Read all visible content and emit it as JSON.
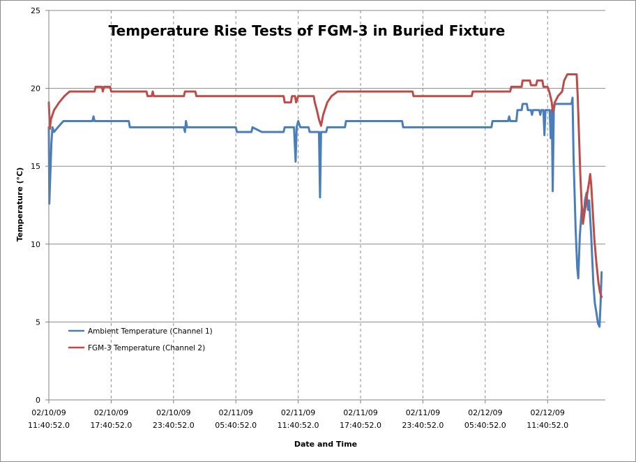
{
  "chart_data": {
    "type": "line",
    "title": "Temperature Rise Tests of FGM-3 in Buried Fixture",
    "xlabel": "Date and Time",
    "ylabel": "Temperature (°C)",
    "ylim": [
      0,
      25
    ],
    "yticks": [
      0,
      5,
      10,
      15,
      20,
      25
    ],
    "xlim_hours": [
      0,
      53
    ],
    "xticks": [
      {
        "hours": 0,
        "date": "02/10/09",
        "time": "11:40:52.0"
      },
      {
        "hours": 6,
        "date": "02/10/09",
        "time": "17:40:52.0"
      },
      {
        "hours": 12,
        "date": "02/10/09",
        "time": "23:40:52.0"
      },
      {
        "hours": 18,
        "date": "02/11/09",
        "time": "05:40:52.0"
      },
      {
        "hours": 24,
        "date": "02/11/09",
        "time": "11:40:52.0"
      },
      {
        "hours": 30,
        "date": "02/11/09",
        "time": "17:40:52.0"
      },
      {
        "hours": 36,
        "date": "02/11/09",
        "time": "23:40:52.0"
      },
      {
        "hours": 42,
        "date": "02/12/09",
        "time": "05:40:52.0"
      },
      {
        "hours": 48,
        "date": "02/12/09",
        "time": "11:40:52.0"
      }
    ],
    "grid": true,
    "legend_position": "bottom-left",
    "series": [
      {
        "name": "Ambient Temperature (Channel 1)",
        "color": "#4a7ebb",
        "points": [
          [
            0,
            17.5
          ],
          [
            0.05,
            12.6
          ],
          [
            0.15,
            14.5
          ],
          [
            0.25,
            16.5
          ],
          [
            0.35,
            17.5
          ],
          [
            0.5,
            17.2
          ],
          [
            1,
            17.6
          ],
          [
            1.4,
            17.9
          ],
          [
            4.2,
            17.9
          ],
          [
            4.3,
            18.2
          ],
          [
            4.4,
            17.9
          ],
          [
            7.7,
            17.9
          ],
          [
            7.8,
            17.5
          ],
          [
            13,
            17.5
          ],
          [
            13.1,
            17.2
          ],
          [
            13.2,
            17.9
          ],
          [
            13.3,
            17.5
          ],
          [
            18,
            17.5
          ],
          [
            18.1,
            17.2
          ],
          [
            19.5,
            17.2
          ],
          [
            19.6,
            17.5
          ],
          [
            20.5,
            17.2
          ],
          [
            22.6,
            17.2
          ],
          [
            22.7,
            17.5
          ],
          [
            23.6,
            17.5
          ],
          [
            23.75,
            15.3
          ],
          [
            23.85,
            17.5
          ],
          [
            24,
            17.9
          ],
          [
            24.2,
            17.5
          ],
          [
            25,
            17.5
          ],
          [
            25.1,
            17.2
          ],
          [
            26,
            17.2
          ],
          [
            26.1,
            13
          ],
          [
            26.2,
            17.2
          ],
          [
            26.7,
            17.2
          ],
          [
            26.8,
            17.5
          ],
          [
            28.5,
            17.5
          ],
          [
            28.6,
            17.9
          ],
          [
            34,
            17.9
          ],
          [
            34.1,
            17.5
          ],
          [
            42.6,
            17.5
          ],
          [
            42.7,
            17.9
          ],
          [
            44.2,
            17.9
          ],
          [
            44.3,
            18.2
          ],
          [
            44.4,
            17.9
          ],
          [
            45,
            17.9
          ],
          [
            45.1,
            18.6
          ],
          [
            45.5,
            18.6
          ],
          [
            45.6,
            19.0
          ],
          [
            46,
            19.0
          ],
          [
            46.1,
            18.6
          ],
          [
            46.4,
            18.6
          ],
          [
            46.5,
            18.3
          ],
          [
            46.6,
            18.6
          ],
          [
            47.2,
            18.6
          ],
          [
            47.3,
            18.3
          ],
          [
            47.4,
            18.6
          ],
          [
            47.6,
            18.6
          ],
          [
            47.7,
            17.0
          ],
          [
            47.8,
            18.6
          ],
          [
            48.2,
            18.6
          ],
          [
            48.3,
            16.8
          ],
          [
            48.4,
            18.6
          ],
          [
            48.5,
            13.4
          ],
          [
            48.6,
            18.6
          ],
          [
            48.7,
            19.0
          ],
          [
            50.3,
            19.0
          ],
          [
            50.4,
            19.4
          ],
          [
            50.5,
            15.5
          ],
          [
            50.7,
            11.0
          ],
          [
            50.85,
            8.5
          ],
          [
            50.95,
            7.8
          ],
          [
            51.1,
            10.5
          ],
          [
            51.3,
            12.4
          ],
          [
            51.45,
            11.5
          ],
          [
            51.6,
            12.8
          ],
          [
            51.75,
            13.3
          ],
          [
            51.9,
            12.2
          ],
          [
            52.0,
            12.8
          ],
          [
            52.2,
            10.5
          ],
          [
            52.4,
            7.5
          ],
          [
            52.55,
            6.2
          ],
          [
            52.7,
            5.6
          ],
          [
            52.85,
            4.9
          ],
          [
            53.0,
            4.7
          ],
          [
            53.1,
            6.2
          ],
          [
            53.2,
            8.2
          ]
        ]
      },
      {
        "name": "FGM-3 Temperature (Channel 2)",
        "color": "#be4b48",
        "points": [
          [
            0,
            19.1
          ],
          [
            0.1,
            17.4
          ],
          [
            0.2,
            18.0
          ],
          [
            0.5,
            18.6
          ],
          [
            1,
            19.1
          ],
          [
            1.5,
            19.5
          ],
          [
            2,
            19.8
          ],
          [
            4.4,
            19.8
          ],
          [
            4.5,
            20.1
          ],
          [
            5.1,
            20.1
          ],
          [
            5.2,
            19.8
          ],
          [
            5.3,
            20.1
          ],
          [
            5.9,
            20.1
          ],
          [
            6,
            19.8
          ],
          [
            9.4,
            19.8
          ],
          [
            9.5,
            19.5
          ],
          [
            9.9,
            19.5
          ],
          [
            10,
            19.8
          ],
          [
            10.1,
            19.5
          ],
          [
            13,
            19.5
          ],
          [
            13.1,
            19.8
          ],
          [
            14.1,
            19.8
          ],
          [
            14.2,
            19.5
          ],
          [
            22.6,
            19.5
          ],
          [
            22.7,
            19.1
          ],
          [
            23.3,
            19.1
          ],
          [
            23.4,
            19.5
          ],
          [
            23.7,
            19.5
          ],
          [
            23.8,
            19.1
          ],
          [
            24,
            19.5
          ],
          [
            25.5,
            19.5
          ],
          [
            25.6,
            19.1
          ],
          [
            25.8,
            18.6
          ],
          [
            26.0,
            18.0
          ],
          [
            26.2,
            17.6
          ],
          [
            26.4,
            18.3
          ],
          [
            26.8,
            19.1
          ],
          [
            27.2,
            19.5
          ],
          [
            27.8,
            19.8
          ],
          [
            35,
            19.8
          ],
          [
            35.1,
            19.5
          ],
          [
            40.7,
            19.5
          ],
          [
            40.8,
            19.8
          ],
          [
            44.4,
            19.8
          ],
          [
            44.5,
            20.1
          ],
          [
            45.5,
            20.1
          ],
          [
            45.6,
            20.5
          ],
          [
            46.3,
            20.5
          ],
          [
            46.4,
            20.2
          ],
          [
            46.9,
            20.2
          ],
          [
            47.0,
            20.5
          ],
          [
            47.5,
            20.5
          ],
          [
            47.6,
            20.1
          ],
          [
            48,
            20.1
          ],
          [
            48.2,
            19.7
          ],
          [
            48.4,
            19.1
          ],
          [
            48.5,
            18.5
          ],
          [
            48.7,
            19.1
          ],
          [
            49.0,
            19.5
          ],
          [
            49.4,
            19.8
          ],
          [
            49.6,
            20.5
          ],
          [
            49.9,
            20.9
          ],
          [
            50.8,
            20.9
          ],
          [
            50.9,
            19.5
          ],
          [
            51.0,
            17.5
          ],
          [
            51.15,
            14.5
          ],
          [
            51.3,
            12.2
          ],
          [
            51.4,
            11.3
          ],
          [
            51.55,
            12.0
          ],
          [
            51.7,
            12.6
          ],
          [
            51.85,
            13.4
          ],
          [
            52.0,
            14.0
          ],
          [
            52.1,
            14.5
          ],
          [
            52.2,
            13.8
          ],
          [
            52.35,
            12.1
          ],
          [
            52.5,
            10.3
          ],
          [
            52.7,
            8.8
          ],
          [
            52.9,
            7.5
          ],
          [
            53.05,
            6.9
          ],
          [
            53.2,
            6.6
          ]
        ]
      }
    ]
  }
}
